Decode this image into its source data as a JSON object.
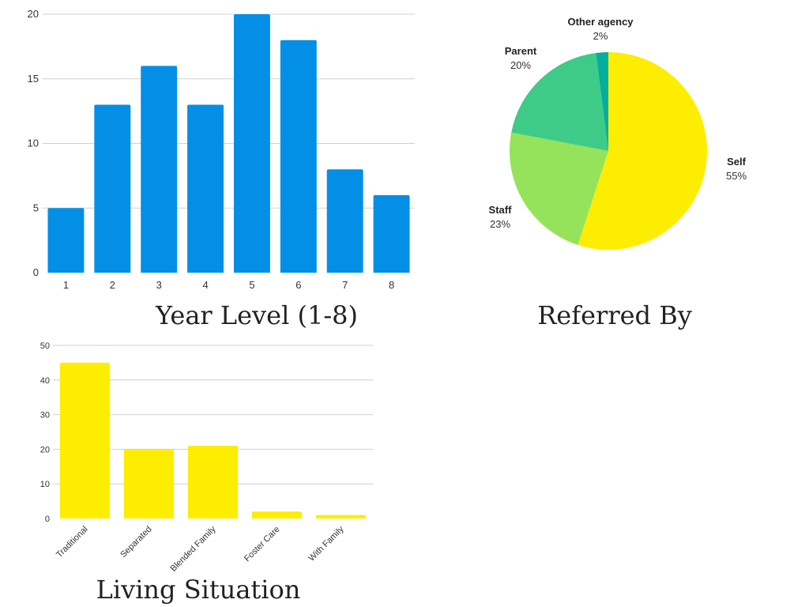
{
  "chart_data": [
    {
      "type": "bar",
      "caption": "Year Level (1-8)",
      "categories": [
        "1",
        "2",
        "3",
        "4",
        "5",
        "6",
        "7",
        "8"
      ],
      "values": [
        5,
        13,
        16,
        13,
        20,
        18,
        8,
        6
      ],
      "ylim": [
        0,
        20
      ],
      "yticks": [
        "0",
        "5",
        "10",
        "15",
        "20"
      ],
      "color": "#038fe6",
      "grid": true
    },
    {
      "type": "pie",
      "caption": "Referred By",
      "slices": [
        {
          "name": "Self",
          "label": "55%",
          "value": 55,
          "color": "#fded00"
        },
        {
          "name": "Staff",
          "label": "23%",
          "value": 23,
          "color": "#95e35a"
        },
        {
          "name": "Parent",
          "label": "20%",
          "value": 20,
          "color": "#3ecb87"
        },
        {
          "name": "Other agency",
          "label": "2%",
          "value": 2,
          "color": "#02ae9c"
        }
      ]
    },
    {
      "type": "bar",
      "caption": "Living Situation",
      "categories": [
        "Traditional",
        "Separated",
        "Blended Family",
        "Foster Care",
        "With Family"
      ],
      "values": [
        45,
        20,
        21,
        2,
        1
      ],
      "ylim": [
        0,
        50
      ],
      "yticks": [
        "0",
        "10",
        "20",
        "30",
        "40",
        "50"
      ],
      "color": "#fded00",
      "grid": true
    }
  ]
}
